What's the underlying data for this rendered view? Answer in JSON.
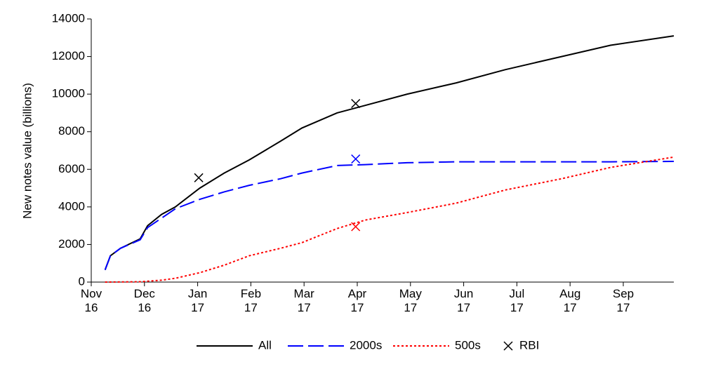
{
  "chart_data": {
    "type": "line",
    "y_label": "New notes value (billions)",
    "xlim": [
      0,
      10.95
    ],
    "xticks": [
      {
        "value": 0,
        "label": "Nov\n16"
      },
      {
        "value": 1,
        "label": "Dec\n16"
      },
      {
        "value": 2,
        "label": "Jan\n17"
      },
      {
        "value": 3,
        "label": "Feb\n17"
      },
      {
        "value": 4,
        "label": "Mar\n17"
      },
      {
        "value": 5,
        "label": "Apr\n17"
      },
      {
        "value": 6,
        "label": "May\n17"
      },
      {
        "value": 7,
        "label": "Jun\n17"
      },
      {
        "value": 8,
        "label": "Jul\n17"
      },
      {
        "value": 9,
        "label": "Aug\n17"
      },
      {
        "value": 10,
        "label": "Sep\n17"
      }
    ],
    "ylim": [
      0,
      14000
    ],
    "yticks": [
      0,
      2000,
      4000,
      6000,
      8000,
      10000,
      12000,
      14000
    ],
    "series": [
      {
        "name": "All",
        "color": "#000000",
        "dash": "solid",
        "x": [
          0.26,
          0.36,
          0.55,
          0.92,
          1.06,
          1.32,
          1.58,
          2.04,
          2.5,
          2.97,
          3.56,
          3.96,
          4.62,
          5.15,
          5.94,
          6.86,
          7.78,
          8.84,
          9.76,
          10.95
        ],
        "values": [
          650,
          1400,
          1800,
          2300,
          3000,
          3600,
          4000,
          5000,
          5800,
          6500,
          7500,
          8200,
          9000,
          9400,
          10000,
          10600,
          11300,
          12000,
          12600,
          13100
        ]
      },
      {
        "name": "2000s",
        "color": "#0000ff",
        "dash": "long",
        "x": [
          0.26,
          0.36,
          0.55,
          0.92,
          1.06,
          1.32,
          1.58,
          2.04,
          2.5,
          2.97,
          3.56,
          3.96,
          4.62,
          5.15,
          5.94,
          6.86,
          7.78,
          8.84,
          9.76,
          10.95
        ],
        "values": [
          650,
          1400,
          1800,
          2250,
          2900,
          3400,
          3900,
          4400,
          4800,
          5150,
          5500,
          5800,
          6200,
          6250,
          6350,
          6400,
          6400,
          6400,
          6400,
          6420
        ]
      },
      {
        "name": "500s",
        "color": "#ff0000",
        "dash": "dot",
        "x": [
          0.26,
          0.92,
          1.32,
          1.58,
          2.04,
          2.5,
          2.97,
          3.56,
          3.96,
          4.62,
          5.15,
          5.94,
          6.86,
          7.78,
          8.84,
          9.76,
          10.95
        ],
        "values": [
          0,
          20,
          100,
          200,
          500,
          900,
          1400,
          1800,
          2100,
          2850,
          3300,
          3700,
          4200,
          4900,
          5500,
          6100,
          6650
        ]
      },
      {
        "name": "RBI",
        "color": "#000000",
        "marker": "x",
        "x": [
          2.02,
          4.97,
          4.97,
          4.97
        ],
        "values": [
          5550,
          9500,
          6550,
          2950
        ],
        "colors": [
          "#000000",
          "#000000",
          "#0000ff",
          "#ff0000"
        ]
      }
    ]
  }
}
